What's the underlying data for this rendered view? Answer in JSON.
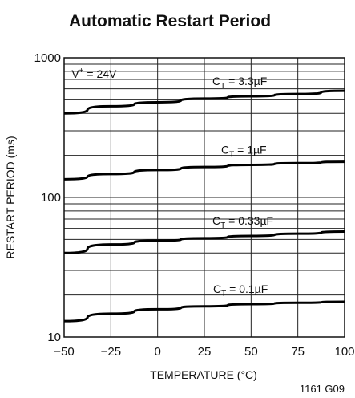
{
  "chart_data": {
    "type": "line",
    "title": "Automatic Restart Period",
    "xlabel": "TEMPERATURE (°C)",
    "ylabel": "RESTART PERIOD (ms)",
    "x_scale": "linear",
    "y_scale": "log",
    "xlim": [
      -50,
      100
    ],
    "ylim": [
      10,
      1000
    ],
    "x_ticks": [
      "−50",
      "−25",
      "0",
      "25",
      "50",
      "75",
      "100"
    ],
    "x_tick_values": [
      -50,
      -25,
      0,
      25,
      50,
      75,
      100
    ],
    "y_ticks": [
      "1000",
      "100",
      "10"
    ],
    "y_tick_values": [
      1000,
      100,
      10
    ],
    "grid": true,
    "condition": {
      "main": "V",
      "sup": "+",
      "rest": " = 24V"
    },
    "figure_id": "1161 G09",
    "series": [
      {
        "label_main": "C",
        "label_sub": "T",
        "label_rest": " = 3.3µF",
        "x": [
          -50,
          -25,
          0,
          25,
          50,
          75,
          100
        ],
        "y": [
          400,
          450,
          480,
          510,
          530,
          550,
          580
        ]
      },
      {
        "label_main": "C",
        "label_sub": "T",
        "label_rest": " = 1µF",
        "x": [
          -50,
          -25,
          0,
          25,
          50,
          75,
          100
        ],
        "y": [
          135,
          147,
          157,
          165,
          171,
          176,
          180
        ]
      },
      {
        "label_main": "C",
        "label_sub": "T",
        "label_rest": " = 0.33µF",
        "x": [
          -50,
          -25,
          0,
          25,
          50,
          75,
          100
        ],
        "y": [
          40,
          46,
          49,
          51,
          53,
          55,
          57
        ]
      },
      {
        "label_main": "C",
        "label_sub": "T",
        "label_rest": " = 0.1µF",
        "x": [
          -50,
          -25,
          0,
          25,
          50,
          75,
          100
        ],
        "y": [
          13,
          14.7,
          15.8,
          16.6,
          17.2,
          17.6,
          17.9
        ]
      }
    ]
  }
}
